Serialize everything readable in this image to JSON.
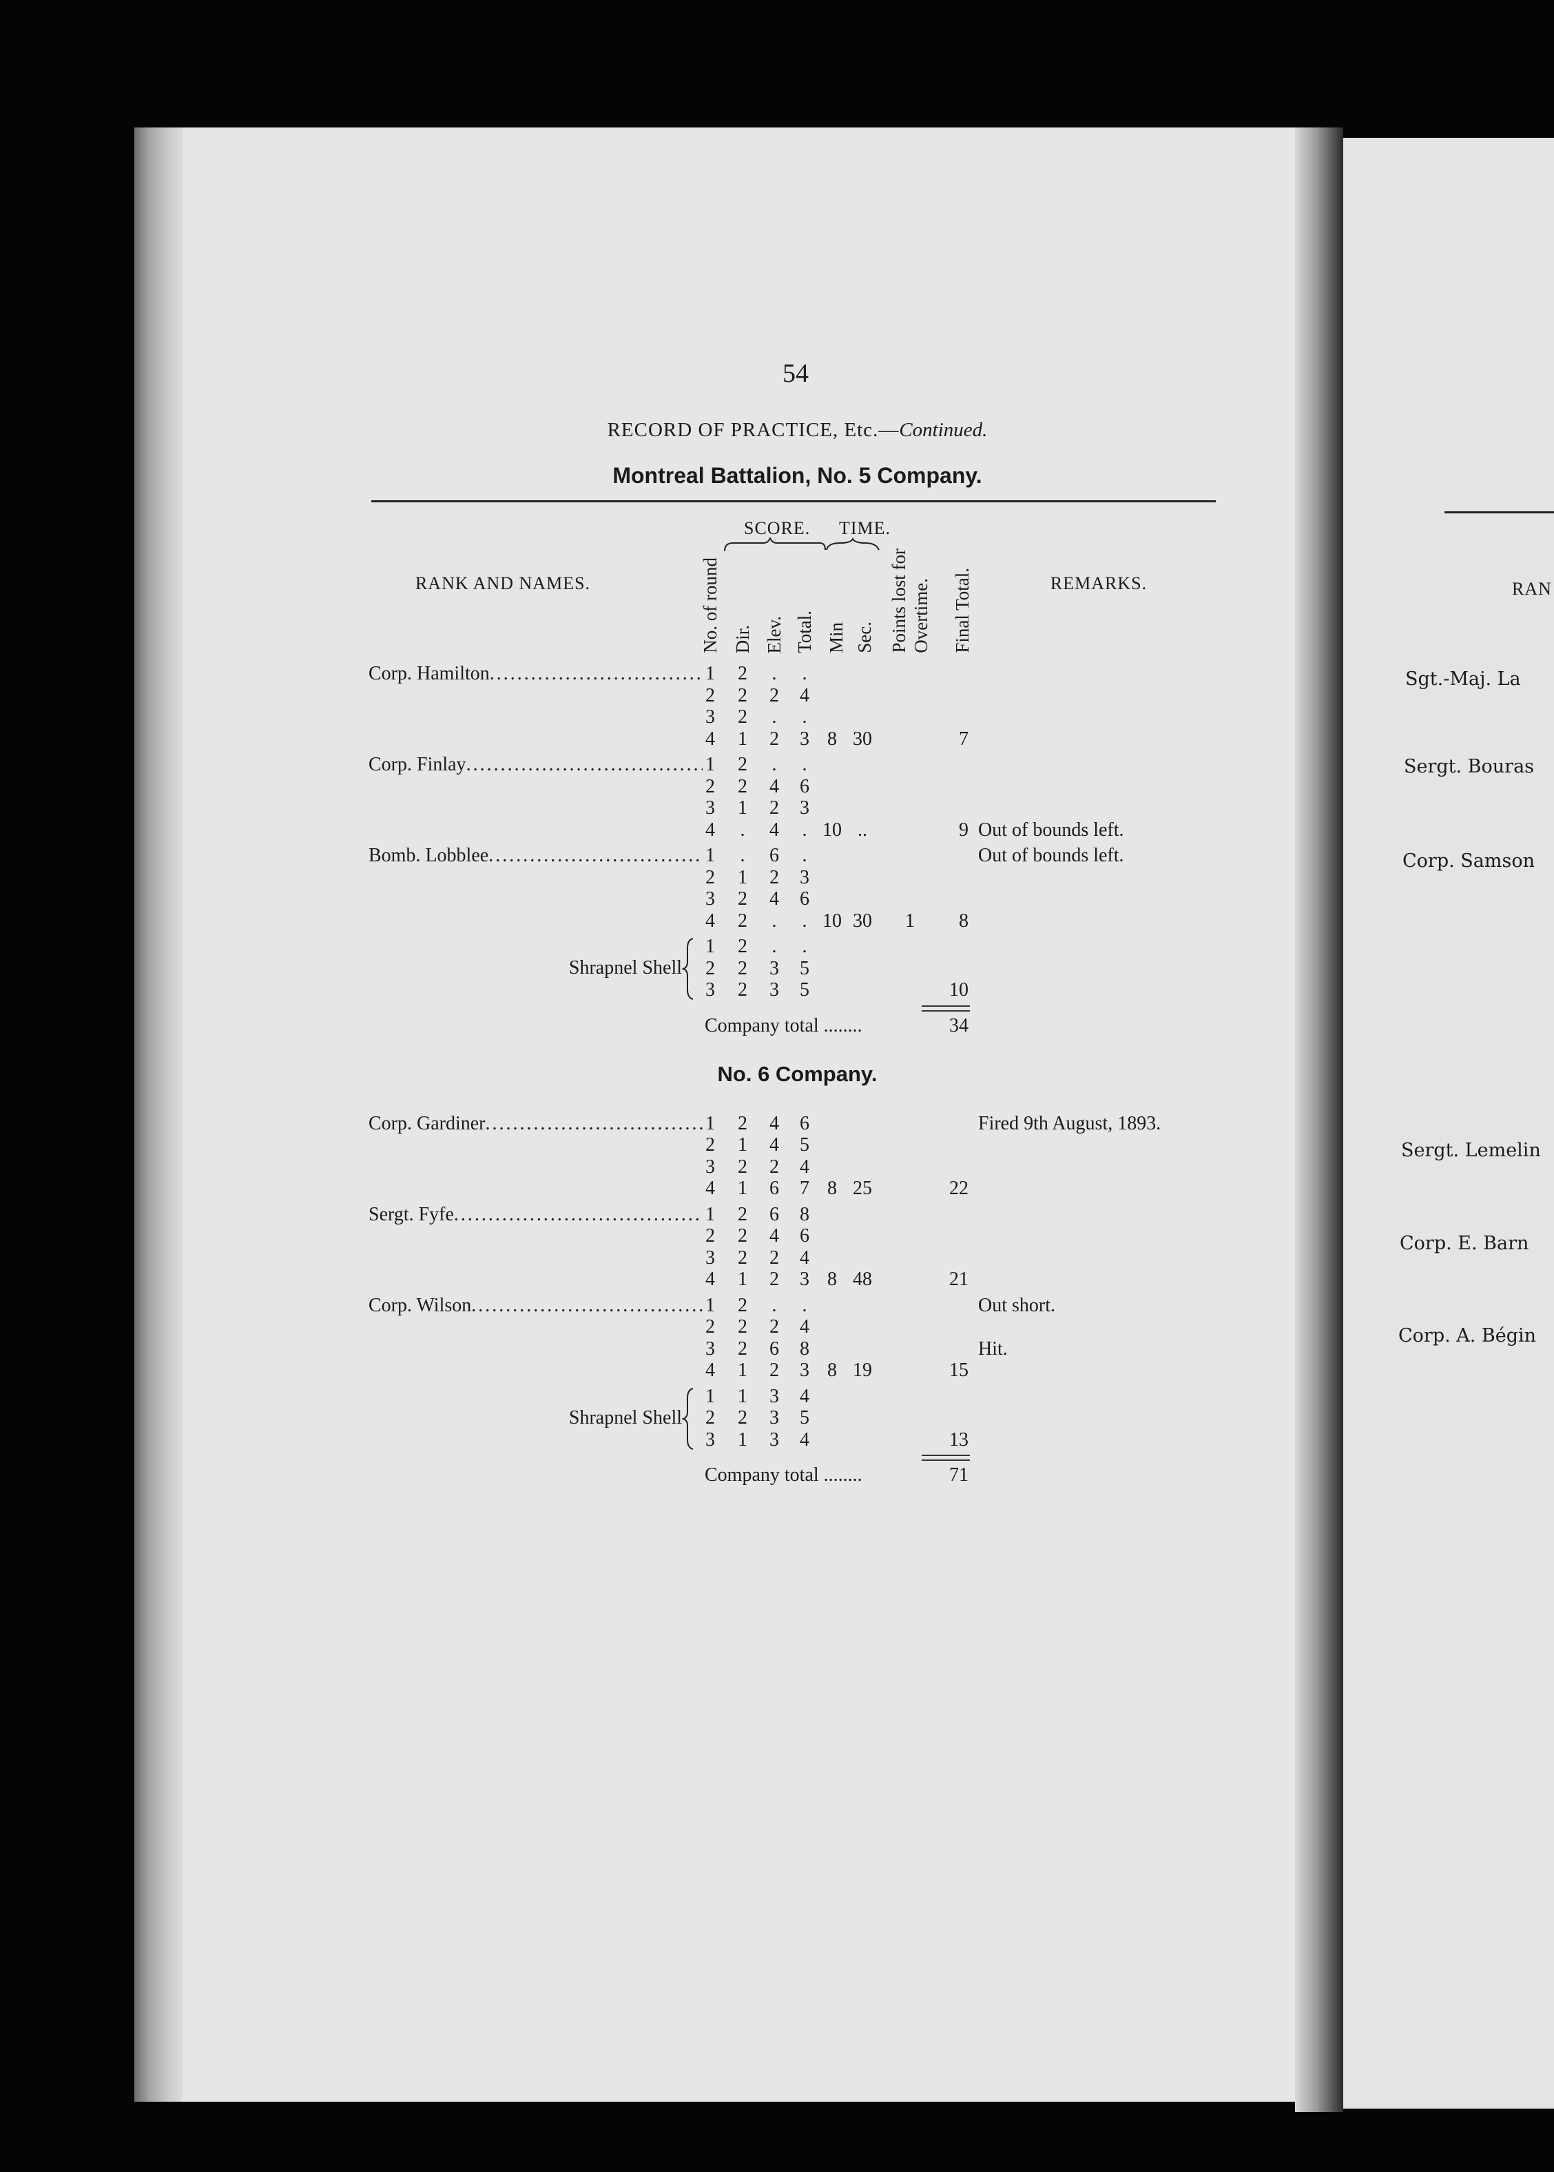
{
  "page_number": "54",
  "running_head": {
    "main": "RECORD OF PRACTICE, Etc.—",
    "italic": "Continued."
  },
  "battalion_heading": "Montreal Battalion, No. 5 Company.",
  "columns": {
    "rank_and_names": "Rank and Names.",
    "score_group": "Score.",
    "time_group": "Time.",
    "round": "No. of round",
    "dir": "Dir.",
    "elev": "Elev.",
    "total": "Total.",
    "min": "Min",
    "sec": "Sec.",
    "points_lost_1": "Points lost for",
    "points_lost_2": "Overtime.",
    "final_total": "Final Total.",
    "remarks": "Remarks."
  },
  "sections": [
    {
      "heading": "",
      "entries": [
        {
          "name": "Corp. Hamilton",
          "rows": [
            [
              "1",
              "2",
              ".",
              ".",
              "",
              "",
              "",
              "",
              ""
            ],
            [
              "2",
              "2",
              "2",
              "4",
              "",
              "",
              "",
              "",
              ""
            ],
            [
              "3",
              "2",
              ".",
              ".",
              "",
              "",
              "",
              "",
              ""
            ],
            [
              "4",
              "1",
              "2",
              "3",
              "8",
              "30",
              "",
              "7",
              ""
            ]
          ]
        },
        {
          "name": "Corp. Finlay",
          "rows": [
            [
              "1",
              "2",
              ".",
              ".",
              "",
              "",
              "",
              "",
              ""
            ],
            [
              "2",
              "2",
              "4",
              "6",
              "",
              "",
              "",
              "",
              ""
            ],
            [
              "3",
              "1",
              "2",
              "3",
              "",
              "",
              "",
              "",
              ""
            ],
            [
              "4",
              ".",
              "4",
              ".",
              "10",
              "..",
              "",
              "9",
              "Out of bounds left."
            ]
          ]
        },
        {
          "name": "Bomb. Lobblee",
          "rows": [
            [
              "1",
              ".",
              "6",
              ".",
              "",
              "",
              "",
              "",
              "Out of bounds left."
            ],
            [
              "2",
              "1",
              "2",
              "3",
              "",
              "",
              "",
              "",
              ""
            ],
            [
              "3",
              "2",
              "4",
              "6",
              "",
              "",
              "",
              "",
              ""
            ],
            [
              "4",
              "2",
              ".",
              ".",
              "10",
              "30",
              "1",
              "8",
              ""
            ]
          ]
        }
      ],
      "shrapnel": {
        "label": "Shrapnel Shell",
        "rows": [
          [
            "1",
            "2",
            ".",
            ".",
            "",
            "",
            "",
            "",
            ""
          ],
          [
            "2",
            "2",
            "3",
            "5",
            "",
            "",
            "",
            "",
            ""
          ],
          [
            "3",
            "2",
            "3",
            "5",
            "",
            "",
            "",
            "10",
            ""
          ]
        ]
      },
      "company_total": {
        "label": "Company total ........",
        "value": "34"
      }
    },
    {
      "heading": "No. 6 Company.",
      "entries": [
        {
          "name": "Corp. Gardiner",
          "rows": [
            [
              "1",
              "2",
              "4",
              "6",
              "",
              "",
              "",
              "",
              "Fired 9th August, 1893."
            ],
            [
              "2",
              "1",
              "4",
              "5",
              "",
              "",
              "",
              "",
              ""
            ],
            [
              "3",
              "2",
              "2",
              "4",
              "",
              "",
              "",
              "",
              ""
            ],
            [
              "4",
              "1",
              "6",
              "7",
              "8",
              "25",
              "",
              "22",
              ""
            ]
          ]
        },
        {
          "name": "Sergt. Fyfe",
          "rows": [
            [
              "1",
              "2",
              "6",
              "8",
              "",
              "",
              "",
              "",
              ""
            ],
            [
              "2",
              "2",
              "4",
              "6",
              "",
              "",
              "",
              "",
              ""
            ],
            [
              "3",
              "2",
              "2",
              "4",
              "",
              "",
              "",
              "",
              ""
            ],
            [
              "4",
              "1",
              "2",
              "3",
              "8",
              "48",
              "",
              "21",
              ""
            ]
          ]
        },
        {
          "name": "Corp. Wilson",
          "rows": [
            [
              "1",
              "2",
              ".",
              ".",
              "",
              "",
              "",
              "",
              "Out short."
            ],
            [
              "2",
              "2",
              "2",
              "4",
              "",
              "",
              "",
              "",
              ""
            ],
            [
              "3",
              "2",
              "6",
              "8",
              "",
              "",
              "",
              "",
              "Hit."
            ],
            [
              "4",
              "1",
              "2",
              "3",
              "8",
              "19",
              "",
              "15",
              ""
            ]
          ]
        }
      ],
      "shrapnel": {
        "label": "Shrapnel Shell",
        "rows": [
          [
            "1",
            "1",
            "3",
            "4",
            "",
            "",
            "",
            "",
            ""
          ],
          [
            "2",
            "2",
            "3",
            "5",
            "",
            "",
            "",
            "",
            ""
          ],
          [
            "3",
            "1",
            "3",
            "4",
            "",
            "",
            "",
            "13",
            ""
          ]
        ]
      },
      "company_total": {
        "label": "Company total ........",
        "value": "71"
      }
    }
  ],
  "right_page": {
    "header": "Ran",
    "names": [
      "Sgt.-Maj. La",
      "Sergt. Bouras",
      "Corp. Samson",
      "Sergt. Lemelin",
      "Corp. E. Barn",
      "Corp. A. Bégin"
    ]
  }
}
